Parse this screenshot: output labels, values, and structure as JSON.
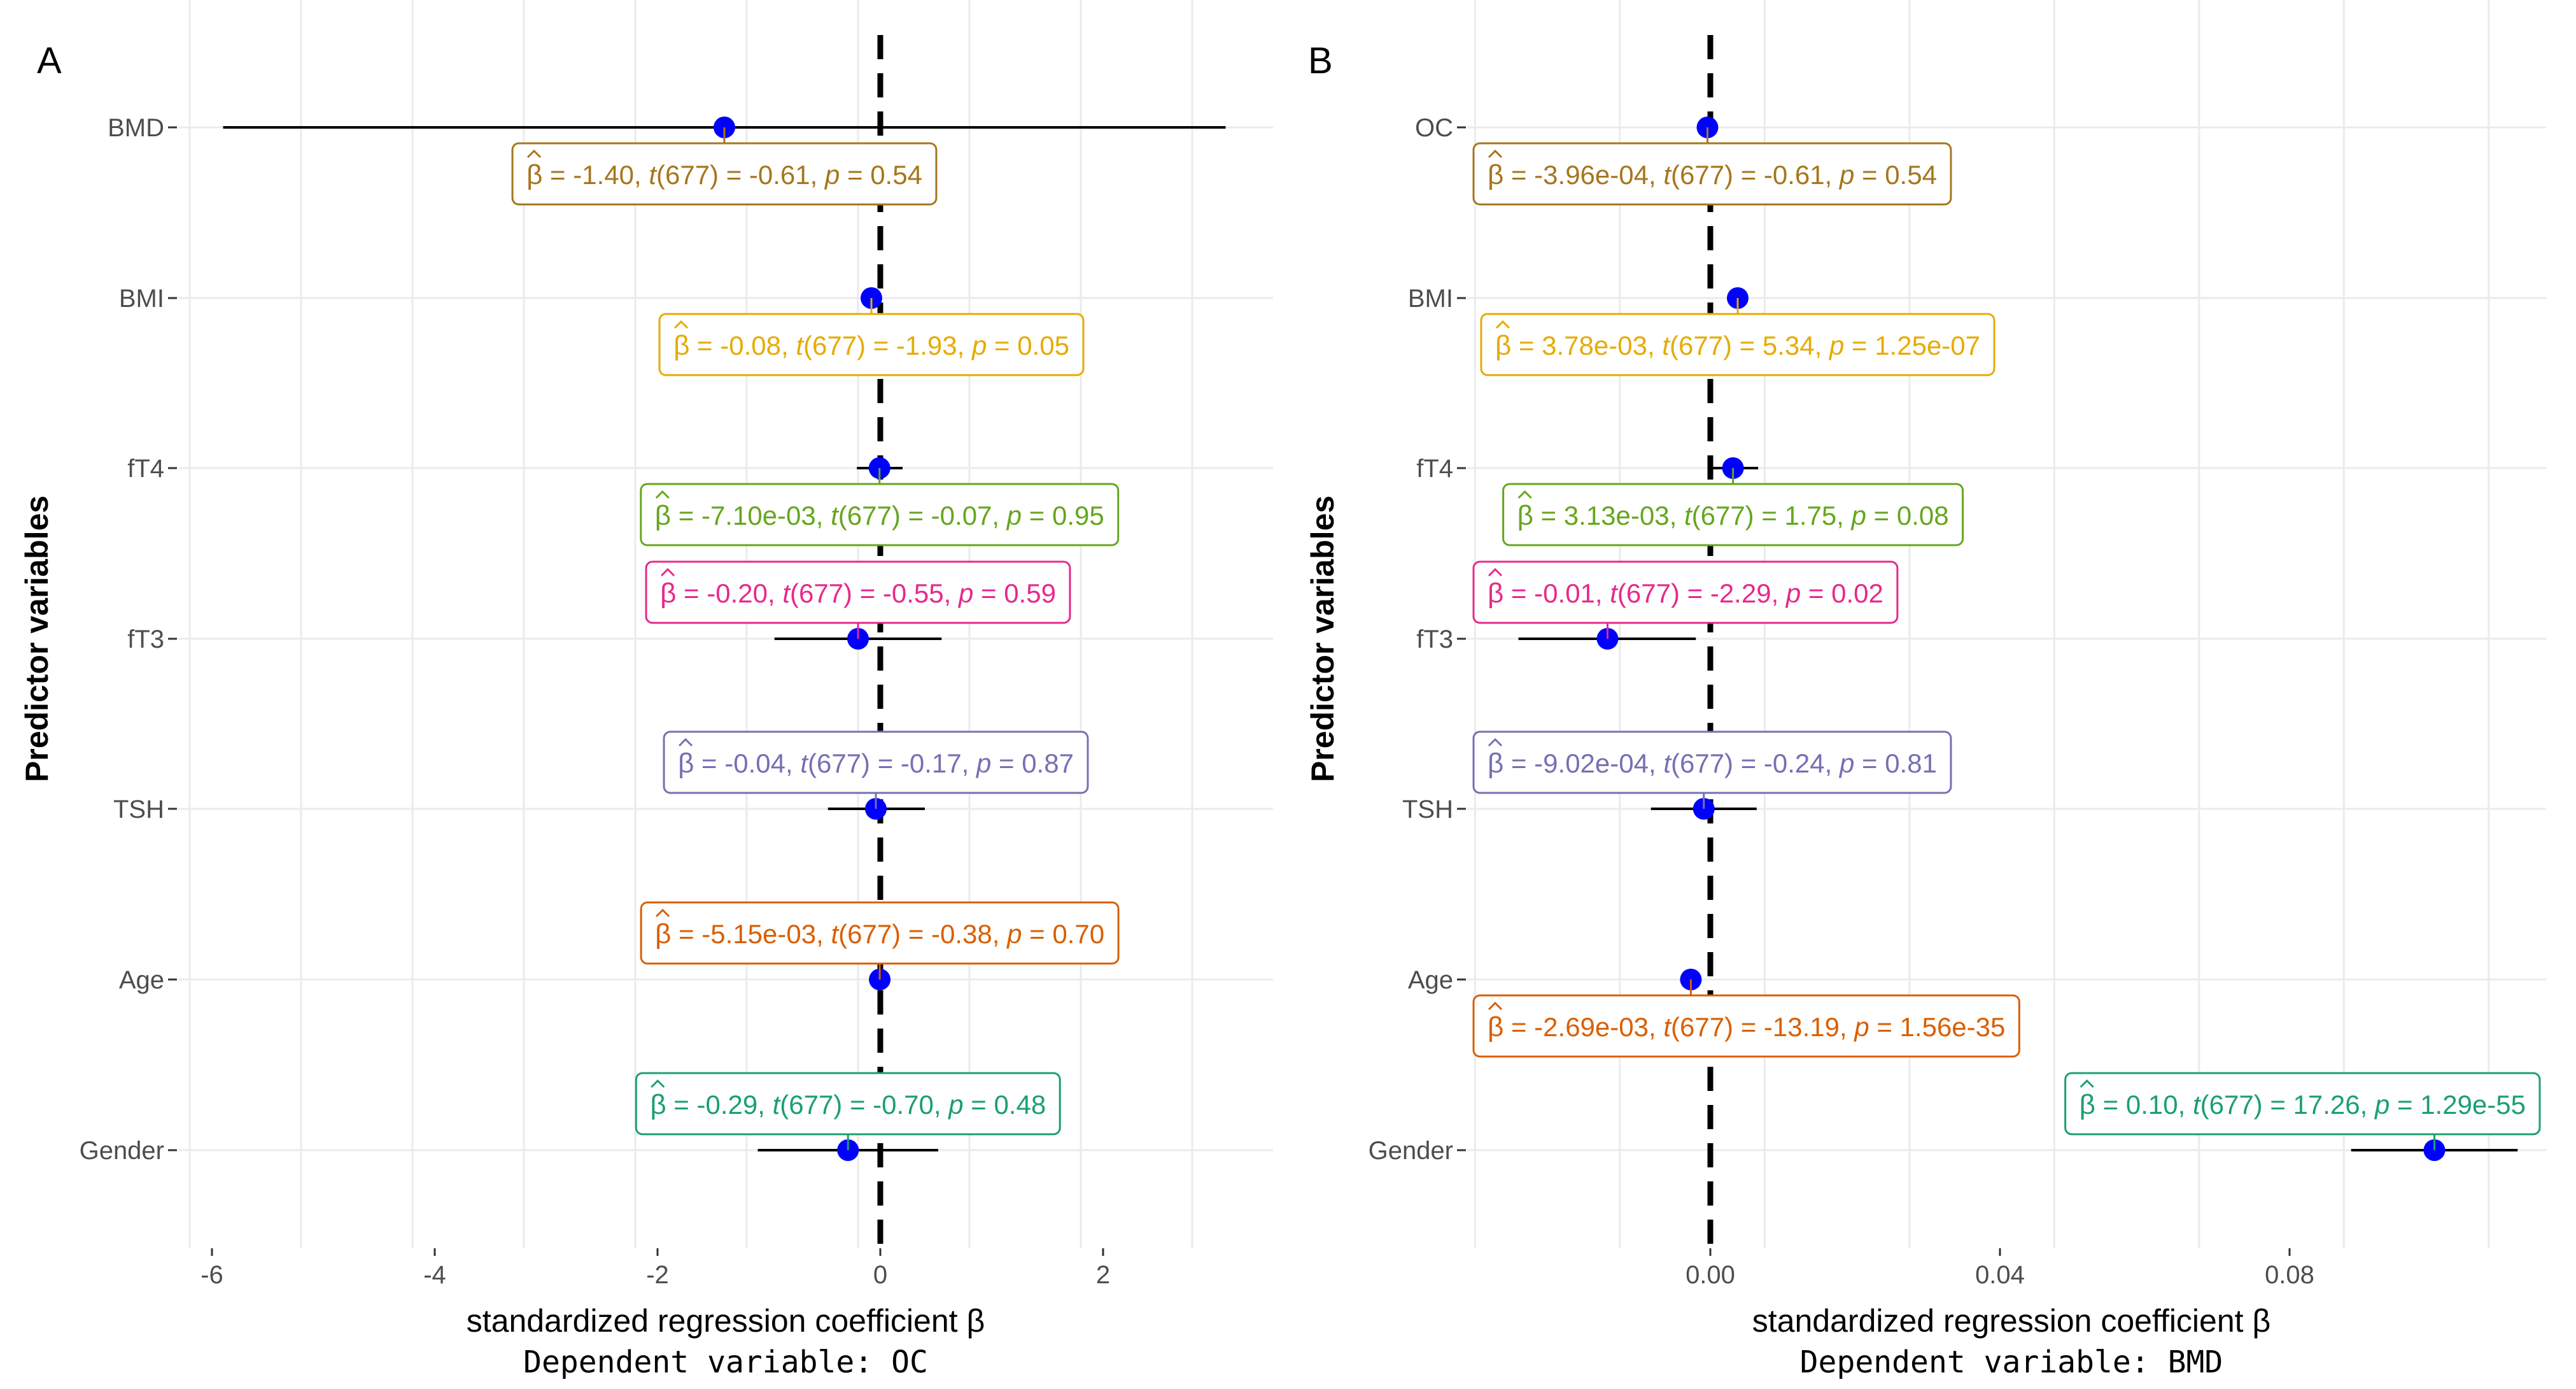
{
  "figure": {
    "panels": [
      "A",
      "B"
    ]
  },
  "chart_data": [
    {
      "panel": "A",
      "type": "scatter",
      "subtype": "coefficient-plot",
      "title": "",
      "xlabel": "standardized regression coefficient β",
      "xsublabel": "Dependent variable: OC",
      "ylabel": "Predictor variables",
      "xlim": [
        -6.2,
        3.6
      ],
      "xticks": [
        -6,
        -4,
        -2,
        0,
        2
      ],
      "xtick_labels": [
        "-6",
        "-4",
        "-2",
        "0",
        "2"
      ],
      "reference_line": 0,
      "grid": true,
      "categories": [
        "BMD",
        "BMI",
        "fT4",
        "fT3",
        "TSH",
        "Age",
        "Gender"
      ],
      "points": [
        {
          "label": "BMD",
          "estimate": -1.4,
          "ci": [
            -5.9,
            3.1
          ],
          "annotation": {
            "beta": "-1.40",
            "t": "-0.61",
            "p": "0.54",
            "color": "#a6761d",
            "side": "below"
          }
        },
        {
          "label": "BMI",
          "estimate": -0.08,
          "ci": [
            -0.16,
            0.0
          ],
          "annotation": {
            "beta": "-0.08",
            "t": "-1.93",
            "p": "0.05",
            "color": "#e6ab02",
            "side": "below"
          }
        },
        {
          "label": "fT4",
          "estimate": -0.0071,
          "ci": [
            -0.21,
            0.2
          ],
          "annotation": {
            "beta": "-7.10e-03",
            "t": "-0.07",
            "p": "0.95",
            "color": "#66a61e",
            "side": "below"
          }
        },
        {
          "label": "fT3",
          "estimate": -0.2,
          "ci": [
            -0.95,
            0.55
          ],
          "annotation": {
            "beta": "-0.20",
            "t": "-0.55",
            "p": "0.59",
            "color": "#e7298a",
            "side": "above"
          }
        },
        {
          "label": "TSH",
          "estimate": -0.04,
          "ci": [
            -0.47,
            0.4
          ],
          "annotation": {
            "beta": "-0.04",
            "t": "-0.17",
            "p": "0.87",
            "color": "#7570b3",
            "side": "above"
          }
        },
        {
          "label": "Age",
          "estimate": -0.00515,
          "ci": [
            -0.03,
            0.02
          ],
          "annotation": {
            "beta": "-5.15e-03",
            "t": "-0.38",
            "p": "0.70",
            "color": "#d95f02",
            "side": "above"
          }
        },
        {
          "label": "Gender",
          "estimate": -0.29,
          "ci": [
            -1.1,
            0.52
          ],
          "annotation": {
            "beta": "-0.29",
            "t": "-0.70",
            "p": "0.48",
            "color": "#1b9e77",
            "side": "above"
          }
        }
      ]
    },
    {
      "panel": "B",
      "type": "scatter",
      "subtype": "coefficient-plot",
      "title": "",
      "xlabel": "standardized regression coefficient β",
      "xsublabel": "Dependent variable: BMD",
      "ylabel": "Predictor variables",
      "xlim": [
        -0.0325,
        0.115
      ],
      "xticks": [
        0.0,
        0.04,
        0.08
      ],
      "xtick_labels": [
        "0.00",
        "0.04",
        "0.08"
      ],
      "reference_line": 0,
      "grid": true,
      "categories": [
        "OC",
        "BMI",
        "fT4",
        "fT3",
        "TSH",
        "Age",
        "Gender"
      ],
      "points": [
        {
          "label": "OC",
          "estimate": -0.000396,
          "ci": [
            -0.0017,
            0.0009
          ],
          "annotation": {
            "beta": "-3.96e-04",
            "t": "-0.61",
            "p": "0.54",
            "color": "#a6761d",
            "side": "below"
          }
        },
        {
          "label": "BMI",
          "estimate": 0.00378,
          "ci": [
            0.0024,
            0.0052
          ],
          "annotation": {
            "beta": "3.78e-03",
            "t": "5.34",
            "p": "1.25e-07",
            "color": "#e6ab02",
            "side": "below"
          }
        },
        {
          "label": "fT4",
          "estimate": 0.00313,
          "ci": [
            -0.0004,
            0.0066
          ],
          "annotation": {
            "beta": "3.13e-03",
            "t": "1.75",
            "p": "0.08",
            "color": "#66a61e",
            "side": "below"
          }
        },
        {
          "label": "fT3",
          "estimate": -0.0142,
          "ci": [
            -0.0265,
            -0.002
          ],
          "annotation": {
            "beta": "-0.01",
            "t": "-2.29",
            "p": "0.02",
            "color": "#e7298a",
            "side": "above"
          }
        },
        {
          "label": "TSH",
          "estimate": -0.000902,
          "ci": [
            -0.0082,
            0.0064
          ],
          "annotation": {
            "beta": "-9.02e-04",
            "t": "-0.24",
            "p": "0.81",
            "color": "#7570b3",
            "side": "above"
          }
        },
        {
          "label": "Age",
          "estimate": -0.00269,
          "ci": [
            -0.0031,
            -0.0023
          ],
          "annotation": {
            "beta": "-2.69e-03",
            "t": "-13.19",
            "p": "1.56e-35",
            "color": "#d95f02",
            "side": "below"
          }
        },
        {
          "label": "Gender",
          "estimate": 0.1,
          "ci": [
            0.0885,
            0.1115
          ],
          "annotation": {
            "beta": "0.10",
            "t": "17.26",
            "p": "1.29e-55",
            "color": "#1b9e77",
            "side": "above"
          }
        }
      ]
    }
  ],
  "annotation_template": {
    "df": "677",
    "t_symbol": "t",
    "p_symbol": "p",
    "beta_symbol": "β"
  },
  "colors": {
    "point": "#0000ff",
    "errorbar": "#000000",
    "refline": "#000000",
    "grid": "#ebebeb"
  }
}
